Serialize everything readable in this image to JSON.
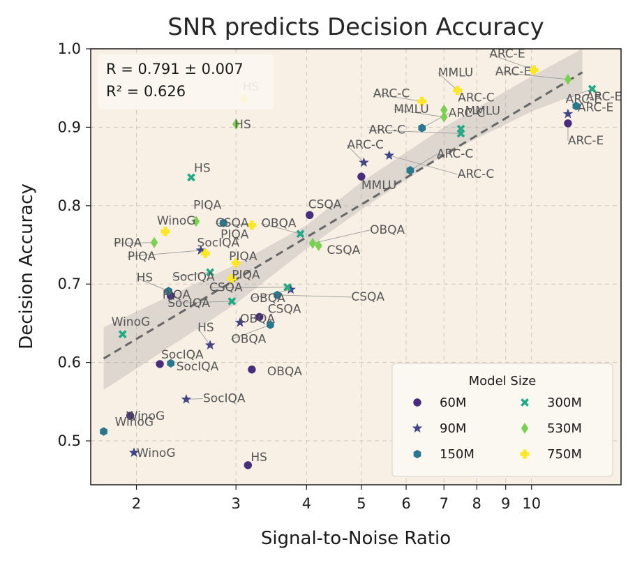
{
  "chart_data": {
    "type": "scatter",
    "title": "SNR predicts Decision Accuracy",
    "xlabel": "Signal-to-Noise Ratio",
    "ylabel": "Decision Accuracy",
    "xscale": "log",
    "xlim": [
      1.66,
      14.4
    ],
    "ylim": [
      0.444,
      1.0
    ],
    "xticks": [
      2,
      3,
      4,
      5,
      6,
      7,
      8,
      9,
      10
    ],
    "xtick_labels": [
      "2",
      "3",
      "4",
      "5",
      "6",
      "7",
      "8",
      "9",
      "10"
    ],
    "yticks": [
      0.5,
      0.6,
      0.7,
      0.8,
      0.9,
      1.0
    ],
    "ytick_labels": [
      "0.5",
      "0.6",
      "0.7",
      "0.8",
      "0.9",
      "1.0"
    ],
    "grid": true,
    "stats_lines": [
      "R = 0.791 ± 0.007",
      "R² = 0.626"
    ],
    "regression": {
      "x0": 1.75,
      "y0": 0.605,
      "x1": 12.3,
      "y1": 0.97
    },
    "band": {
      "x": [
        1.75,
        3.0,
        4.0,
        5.0,
        7.0,
        10.0,
        12.3
      ],
      "upper": [
        0.645,
        0.725,
        0.775,
        0.83,
        0.9,
        0.965,
        1.0
      ],
      "lower": [
        0.565,
        0.675,
        0.745,
        0.795,
        0.865,
        0.92,
        0.945
      ]
    },
    "legend": {
      "title": "Model Size",
      "position": "lower-right"
    },
    "series": [
      {
        "name": "60M",
        "marker": "circle",
        "color": "#472d7b",
        "points": [
          {
            "label": "ARC-E",
            "x": 11.6,
            "y": 0.905
          },
          {
            "label": "MMLU",
            "x": 5.0,
            "y": 0.837
          },
          {
            "label": "CSQA",
            "x": 4.05,
            "y": 0.788
          },
          {
            "label": "PIQA",
            "x": 2.3,
            "y": 0.685
          },
          {
            "label": "CSQA",
            "x": 3.3,
            "y": 0.658
          },
          {
            "label": "SocIQA",
            "x": 2.2,
            "y": 0.598
          },
          {
            "label": "OBQA",
            "x": 3.2,
            "y": 0.591
          },
          {
            "label": "WinoG",
            "x": 1.95,
            "y": 0.532
          },
          {
            "label": "HS",
            "x": 3.15,
            "y": 0.469
          }
        ]
      },
      {
        "name": "90M",
        "marker": "star",
        "color": "#414487",
        "points": [
          {
            "label": "ARC-E",
            "x": 11.6,
            "y": 0.917
          },
          {
            "label": "ARC-C",
            "x": 5.6,
            "y": 0.864
          },
          {
            "label": "ARC-C",
            "x": 5.05,
            "y": 0.855
          },
          {
            "label": "PIQA",
            "x": 2.6,
            "y": 0.743
          },
          {
            "label": "OBQA",
            "x": 3.75,
            "y": 0.693
          },
          {
            "label": "OBQA",
            "x": 3.05,
            "y": 0.651
          },
          {
            "label": "HS",
            "x": 2.7,
            "y": 0.622
          },
          {
            "label": "SocIQA",
            "x": 2.45,
            "y": 0.553
          },
          {
            "label": "WinoG",
            "x": 1.98,
            "y": 0.485
          }
        ]
      },
      {
        "name": "150M",
        "marker": "hexagon",
        "color": "#2a788e",
        "points": [
          {
            "label": "ARC-E",
            "x": 12.0,
            "y": 0.927
          },
          {
            "label": "ARC-C",
            "x": 6.4,
            "y": 0.899
          },
          {
            "label": "ARC-C",
            "x": 6.1,
            "y": 0.845
          },
          {
            "label": "PIQA",
            "x": 2.85,
            "y": 0.778
          },
          {
            "label": "HS",
            "x": 2.28,
            "y": 0.691
          },
          {
            "label": "CSQA",
            "x": 3.55,
            "y": 0.686
          },
          {
            "label": "OBQA",
            "x": 3.45,
            "y": 0.648
          },
          {
            "label": "SocIQA",
            "x": 2.3,
            "y": 0.599
          },
          {
            "label": "WinoG",
            "x": 1.75,
            "y": 0.512
          }
        ]
      },
      {
        "name": "300M",
        "marker": "x",
        "color": "#22a884",
        "points": [
          {
            "label": "ARC-E",
            "x": 12.8,
            "y": 0.949
          },
          {
            "label": "MMLU",
            "x": 7.5,
            "y": 0.898
          },
          {
            "label": "ARC-C",
            "x": 7.5,
            "y": 0.892
          },
          {
            "label": "HS",
            "x": 2.5,
            "y": 0.836
          },
          {
            "label": "OBQA",
            "x": 3.9,
            "y": 0.764
          },
          {
            "label": "SocIQA",
            "x": 2.7,
            "y": 0.715
          },
          {
            "label": "CSQA",
            "x": 3.7,
            "y": 0.696
          },
          {
            "label": "SocIQA",
            "x": 2.95,
            "y": 0.678
          },
          {
            "label": "WinoG",
            "x": 1.89,
            "y": 0.636
          }
        ]
      },
      {
        "name": "530M",
        "marker": "diamond",
        "color": "#7ad151",
        "points": [
          {
            "label": "ARC-E",
            "x": 11.6,
            "y": 0.961
          },
          {
            "label": "ARC-C",
            "x": 7.0,
            "y": 0.922
          },
          {
            "label": "MMLU",
            "x": 7.0,
            "y": 0.913
          },
          {
            "label": "HS",
            "x": 3.0,
            "y": 0.904
          },
          {
            "label": "PIQA",
            "x": 2.55,
            "y": 0.78
          },
          {
            "label": "OBQA",
            "x": 4.1,
            "y": 0.752
          },
          {
            "label": "CSQA",
            "x": 4.2,
            "y": 0.749
          },
          {
            "label": "PIQA",
            "x": 2.15,
            "y": 0.753
          }
        ]
      },
      {
        "name": "750M",
        "marker": "plus",
        "color": "#fde725",
        "points": [
          {
            "label": "ARC-E",
            "x": 10.1,
            "y": 0.973
          },
          {
            "label": "MMLU",
            "x": 7.4,
            "y": 0.947
          },
          {
            "label": "ARC-C",
            "x": 6.4,
            "y": 0.933
          },
          {
            "label": "HS",
            "x": 3.1,
            "y": 0.936
          },
          {
            "label": "CSQA",
            "x": 3.2,
            "y": 0.775
          },
          {
            "label": "WinoG",
            "x": 2.25,
            "y": 0.767
          },
          {
            "label": "SocIQA",
            "x": 2.65,
            "y": 0.739
          },
          {
            "label": "PIQA",
            "x": 3.0,
            "y": 0.727
          },
          {
            "label": "PIQA",
            "x": 2.95,
            "y": 0.707
          }
        ]
      }
    ]
  }
}
